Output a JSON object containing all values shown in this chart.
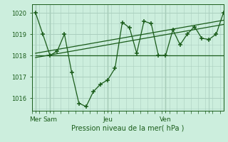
{
  "bg_color": "#cceedd",
  "line_color": "#1a5c1a",
  "grid_color": "#aacfbf",
  "ylabel_values": [
    1016,
    1017,
    1018,
    1019,
    1020
  ],
  "ylim": [
    1015.4,
    1020.4
  ],
  "xlabel": "Pression niveau de la mer( hPa )",
  "x_tick_positions": [
    0,
    2,
    10,
    18,
    24
  ],
  "x_tick_labels": [
    "Mer",
    "Sam",
    "Jeu",
    "Ven",
    ""
  ],
  "x_vline_positions": [
    0,
    2,
    10,
    18
  ],
  "xlim": [
    -0.5,
    26
  ],
  "main_data_x": [
    0,
    1,
    2,
    3,
    4,
    5,
    6,
    7,
    8,
    9,
    10,
    11,
    12,
    13,
    14,
    15,
    16,
    17,
    18,
    19,
    20,
    21,
    22,
    23,
    24,
    25,
    26
  ],
  "main_data_y": [
    1020.0,
    1019.0,
    1018.0,
    1018.2,
    1019.0,
    1017.2,
    1015.75,
    1015.6,
    1016.3,
    1016.65,
    1016.85,
    1017.4,
    1019.55,
    1019.3,
    1018.1,
    1019.6,
    1019.5,
    1018.0,
    1018.0,
    1019.2,
    1018.5,
    1019.0,
    1019.35,
    1018.8,
    1018.75,
    1019.0,
    1020.0
  ],
  "trend1_x": [
    0,
    26
  ],
  "trend1_y": [
    1018.0,
    1018.0
  ],
  "trend2_x": [
    0,
    26
  ],
  "trend2_y": [
    1017.9,
    1019.45
  ],
  "trend3_x": [
    0,
    26
  ],
  "trend3_y": [
    1018.1,
    1019.65
  ]
}
